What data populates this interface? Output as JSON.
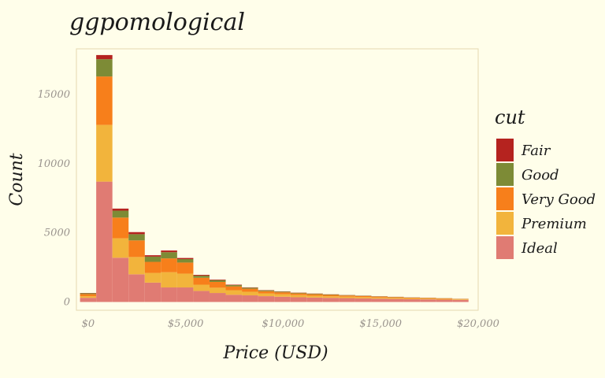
{
  "chart_data": {
    "type": "bar",
    "stacked": true,
    "title": "ggpomological",
    "xlabel": "Price (USD)",
    "ylabel": "Count",
    "xlim": [
      -600,
      20000
    ],
    "ylim": [
      -600,
      18300
    ],
    "x_ticks": [
      {
        "value": 0,
        "label": "$0"
      },
      {
        "value": 5000,
        "label": "$5,000"
      },
      {
        "value": 10000,
        "label": "$10,000"
      },
      {
        "value": 15000,
        "label": "$15,000"
      },
      {
        "value": 20000,
        "label": "$20,000"
      }
    ],
    "y_ticks": [
      {
        "value": 0,
        "label": "0"
      },
      {
        "value": 5000,
        "label": "5000"
      },
      {
        "value": 10000,
        "label": "10000"
      },
      {
        "value": 15000,
        "label": "15000"
      }
    ],
    "bin_width": 830,
    "bin_centers": [
      0,
      830,
      1660,
      2490,
      3320,
      4150,
      4980,
      5810,
      6640,
      7470,
      8300,
      9130,
      9960,
      10790,
      11620,
      12450,
      13280,
      14110,
      14940,
      15770,
      16600,
      17430,
      18260,
      19090
    ],
    "legend_title": "cut",
    "legend_position": "right",
    "grid": false,
    "series": [
      {
        "name": "Ideal",
        "color": "#e07b73",
        "values": [
          300,
          8700,
          3200,
          2000,
          1400,
          1050,
          1050,
          800,
          650,
          520,
          480,
          420,
          380,
          340,
          320,
          300,
          280,
          260,
          240,
          220,
          200,
          190,
          170,
          150
        ]
      },
      {
        "name": "Premium",
        "color": "#f2b43c",
        "values": [
          120,
          4100,
          1400,
          1250,
          700,
          1100,
          1000,
          450,
          380,
          330,
          260,
          200,
          180,
          160,
          130,
          110,
          100,
          90,
          80,
          70,
          60,
          55,
          50,
          40
        ]
      },
      {
        "name": "Very Good",
        "color": "#f77f1b",
        "values": [
          150,
          3500,
          1500,
          1200,
          800,
          1000,
          800,
          500,
          420,
          280,
          220,
          160,
          140,
          120,
          110,
          100,
          90,
          80,
          70,
          60,
          50,
          45,
          40,
          30
        ]
      },
      {
        "name": "Good",
        "color": "#7d8b36",
        "values": [
          60,
          1250,
          500,
          450,
          380,
          450,
          250,
          150,
          130,
          90,
          70,
          60,
          50,
          40,
          35,
          30,
          25,
          20,
          18,
          16,
          14,
          12,
          10,
          8
        ]
      },
      {
        "name": "Fair",
        "color": "#b5231f",
        "values": [
          20,
          300,
          150,
          150,
          100,
          120,
          80,
          60,
          40,
          30,
          25,
          20,
          18,
          16,
          14,
          12,
          10,
          9,
          8,
          7,
          6,
          5,
          4,
          3
        ]
      }
    ],
    "legend_order": [
      "Fair",
      "Good",
      "Very Good",
      "Premium",
      "Ideal"
    ]
  },
  "colors": {
    "background": "#fffeea",
    "panel_border": "#e5d8b0",
    "text": "#1a1a1a",
    "tick_text": "#9a948e"
  }
}
